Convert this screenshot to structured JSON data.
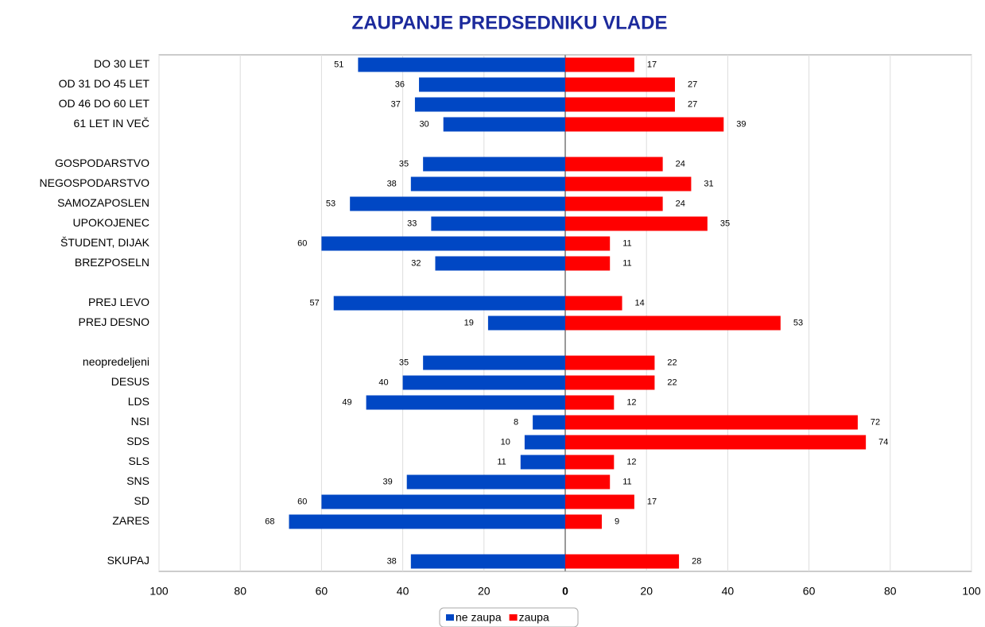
{
  "chart_data": {
    "type": "diverging-bar",
    "title": "ZAUPANJE PREDSEDNIKU VLADE",
    "categories": [
      "DO 30 LET",
      "OD 31 DO 45 LET",
      "OD 46 DO 60 LET",
      "61 LET IN VEČ",
      null,
      "GOSPODARSTVO",
      "NEGOSPODARSTVO",
      "SAMOZAPOSLEN",
      "UPOKOJENEC",
      "ŠTUDENT, DIJAK",
      "BREZPOSELN",
      null,
      "PREJ LEVO",
      "PREJ DESNO",
      null,
      "neopredeljeni",
      "DESUS",
      "LDS",
      "NSI",
      "SDS",
      "SLS",
      "SNS",
      "SD",
      "ZARES",
      null,
      "SKUPAJ"
    ],
    "series": [
      {
        "name": "ne zaupa",
        "color": "#0047c4",
        "values": [
          -51,
          -36,
          -37,
          -30,
          null,
          -35,
          -38,
          -53,
          -33,
          -60,
          -32,
          null,
          -57,
          -19,
          null,
          -35,
          -40,
          -49,
          -8,
          -10,
          -11,
          -39,
          -60,
          -68,
          null,
          -38
        ],
        "value_labels": [
          "51",
          "36",
          "37",
          "30",
          null,
          "35",
          "38",
          "53",
          "33",
          "60",
          "32",
          null,
          "57",
          "19",
          null,
          "35",
          "40",
          "49",
          "8",
          "10",
          "11",
          "39",
          "60",
          "68",
          null,
          "38"
        ]
      },
      {
        "name": "zaupa",
        "color": "#ff0000",
        "values": [
          17,
          27,
          27,
          39,
          null,
          24,
          31,
          24,
          35,
          11,
          11,
          null,
          14,
          53,
          null,
          22,
          22,
          12,
          72,
          74,
          12,
          11,
          17,
          9,
          null,
          28
        ],
        "value_labels": [
          "17",
          "27",
          "27",
          "39",
          null,
          "24",
          "31",
          "24",
          "35",
          "11",
          "11",
          null,
          "14",
          "53",
          null,
          "22",
          "22",
          "12",
          "72",
          "74",
          "12",
          "11",
          "17",
          "9",
          null,
          "28"
        ]
      }
    ],
    "xlim": [
      -100,
      100
    ],
    "xticks": [
      {
        "value": -100,
        "label": "100"
      },
      {
        "value": -80,
        "label": "80"
      },
      {
        "value": -60,
        "label": "60"
      },
      {
        "value": -40,
        "label": "40"
      },
      {
        "value": -20,
        "label": "20"
      },
      0,
      20,
      40,
      60,
      80,
      100
    ],
    "grid": true,
    "legend": "bottom"
  }
}
